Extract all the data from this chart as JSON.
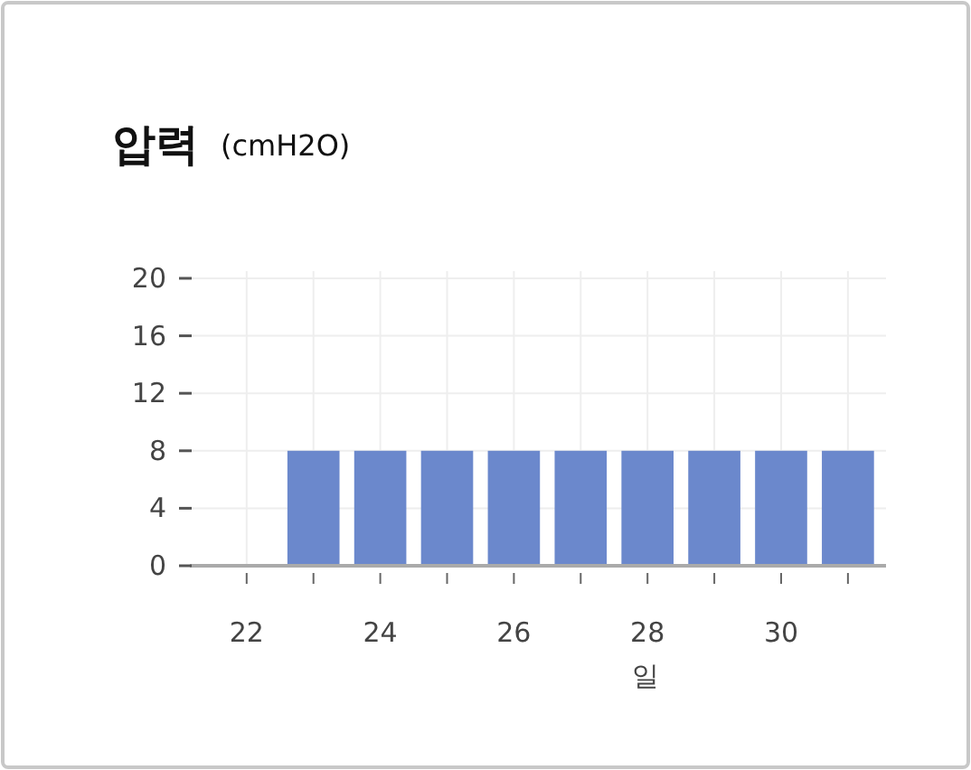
{
  "chart_data": {
    "type": "bar",
    "title": "압력",
    "subtitle": "(cmH2O)",
    "xlabel": "일",
    "x": [
      22,
      23,
      24,
      25,
      26,
      27,
      28,
      29,
      30,
      31
    ],
    "values": [
      0,
      8,
      8,
      8,
      8,
      8,
      8,
      8,
      8,
      8
    ],
    "color": "#6b88cc",
    "xlim": [
      21.15,
      31.57
    ],
    "ylim": [
      0,
      20.5
    ],
    "xticks": [
      22,
      {
        "value": 23,
        "label": null
      },
      24,
      {
        "value": 25,
        "label": null
      },
      26,
      {
        "value": 27,
        "label": null
      },
      28,
      {
        "value": 29,
        "label": null
      },
      30,
      {
        "value": 31,
        "label": null
      }
    ],
    "yticks": [
      0,
      4,
      8,
      12,
      16,
      20
    ],
    "grid": true
  }
}
